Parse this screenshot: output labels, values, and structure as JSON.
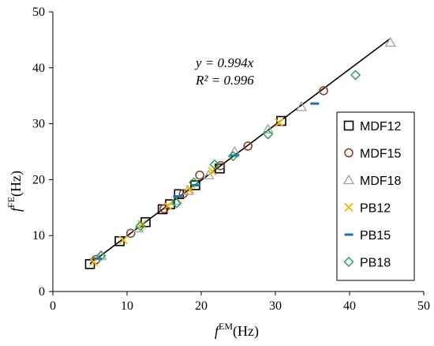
{
  "chart_data": {
    "type": "scatter",
    "title": "",
    "xlabel": {
      "base": "f",
      "sup": "EM",
      "unit": "(Hz)"
    },
    "ylabel": {
      "base": "f",
      "sup": "FE",
      "unit": "(Hz)"
    },
    "xlim": [
      0,
      50
    ],
    "ylim": [
      0,
      50
    ],
    "xticks": [
      0,
      10,
      20,
      30,
      40,
      50
    ],
    "yticks": [
      0,
      10,
      20,
      30,
      40,
      50
    ],
    "grid": false,
    "legend_position": "right",
    "annotation": {
      "line1": "y = 0.994x",
      "line2": "R² = 0.996"
    },
    "fit_line": {
      "slope": 0.994,
      "x_range": [
        5,
        45.5
      ]
    },
    "series": [
      {
        "name": "MDF12",
        "marker": "square",
        "color": "#000000",
        "points": [
          [
            5.0,
            4.9
          ],
          [
            9.0,
            9.0
          ],
          [
            12.5,
            12.4
          ],
          [
            14.8,
            14.7
          ],
          [
            15.8,
            15.6
          ],
          [
            17.0,
            17.4
          ],
          [
            19.2,
            19.0
          ],
          [
            22.5,
            22.0
          ],
          [
            30.8,
            30.5
          ]
        ]
      },
      {
        "name": "MDF15",
        "marker": "circle",
        "color": "#8B3A1A",
        "points": [
          [
            5.8,
            5.7
          ],
          [
            10.5,
            10.4
          ],
          [
            15.0,
            14.8
          ],
          [
            17.6,
            17.5
          ],
          [
            19.8,
            20.8
          ],
          [
            22.6,
            22.5
          ],
          [
            26.3,
            26.0
          ],
          [
            36.5,
            35.9
          ]
        ]
      },
      {
        "name": "MDF18",
        "marker": "triangle",
        "color": "#A0A0A0",
        "points": [
          [
            6.5,
            6.4
          ],
          [
            11.5,
            11.3
          ],
          [
            16.5,
            16.2
          ],
          [
            18.2,
            18.0
          ],
          [
            21.0,
            20.8
          ],
          [
            24.5,
            25.0
          ],
          [
            29.0,
            29.0
          ],
          [
            33.5,
            33.0
          ],
          [
            45.5,
            44.5
          ]
        ]
      },
      {
        "name": "PB12",
        "marker": "x",
        "color": "#F5B800",
        "points": [
          [
            5.5,
            5.3
          ],
          [
            9.5,
            9.2
          ],
          [
            12.0,
            12.0
          ],
          [
            15.5,
            15.3
          ],
          [
            18.5,
            18.2
          ],
          [
            21.5,
            21.5
          ],
          [
            30.5,
            30.2
          ]
        ]
      },
      {
        "name": "PB15",
        "marker": "dash",
        "color": "#1F6FB5",
        "points": [
          [
            6.0,
            5.9
          ],
          [
            16.8,
            17.0
          ],
          [
            19.3,
            19.0
          ],
          [
            24.5,
            24.3
          ],
          [
            35.3,
            33.6
          ]
        ]
      },
      {
        "name": "PB18",
        "marker": "diamond",
        "color": "#22A04B",
        "points": [
          [
            6.5,
            6.4
          ],
          [
            11.8,
            11.7
          ],
          [
            16.7,
            15.8
          ],
          [
            19.0,
            19.5
          ],
          [
            21.8,
            22.7
          ],
          [
            24.3,
            24.2
          ],
          [
            29.0,
            28.1
          ],
          [
            40.8,
            38.7
          ]
        ]
      }
    ]
  }
}
